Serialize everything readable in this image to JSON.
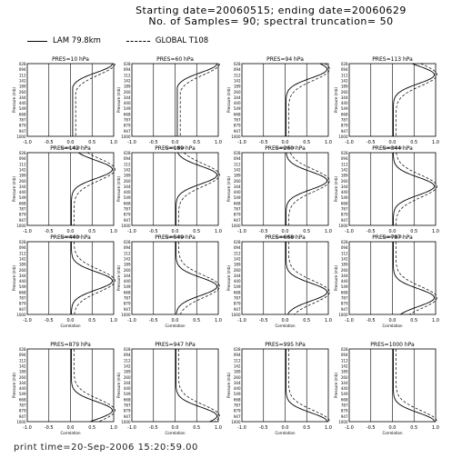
{
  "header": {
    "line1": "Starting date=20060515;  ending date=20060629",
    "line2": "No. of Samples= 90;   spectral truncation= 50"
  },
  "legend": {
    "series1": "LAM 79.8km",
    "series2": "GLOBAL T108"
  },
  "footer": {
    "print_time": "print time=20-Sep-2006 15:20:59.00"
  },
  "chart_data": {
    "type": "line",
    "xlabel": "Correlation",
    "ylabel": "Pressure (mb)",
    "xlim": [
      -1.0,
      1.0
    ],
    "x_ticks": [
      "-1.0",
      "-0.5",
      "0.0",
      "0.5",
      "1.0"
    ],
    "y_ticks": [
      "028",
      "094",
      "112",
      "142",
      "189",
      "260",
      "344",
      "440",
      "549",
      "668",
      "787",
      "879",
      "947",
      "1000"
    ],
    "series_names": [
      "LAM 79.8km",
      "GLOBAL T108"
    ],
    "panels": [
      {
        "title": "PRES=10 hPa",
        "level": 10
      },
      {
        "title": "PRES=60 hPa",
        "level": 60
      },
      {
        "title": "PRES=94 hPa",
        "level": 94
      },
      {
        "title": "PRES=113 hPa",
        "level": 113
      },
      {
        "title": "PRES=142 hPa",
        "level": 142
      },
      {
        "title": "PRES=189 hPa",
        "level": 189
      },
      {
        "title": "PRES=260 hPa",
        "level": 260
      },
      {
        "title": "PRES=344 hPa",
        "level": 344
      },
      {
        "title": "PRES=440 hPa",
        "level": 440
      },
      {
        "title": "PRES=549 hPa",
        "level": 549
      },
      {
        "title": "PRES=668 hPa",
        "level": 668
      },
      {
        "title": "PRES=787 hPa",
        "level": 787
      },
      {
        "title": "PRES=879 hPa",
        "level": 879
      },
      {
        "title": "PRES=947 hPa",
        "level": 947
      },
      {
        "title": "PRES=995 hPa",
        "level": 995
      },
      {
        "title": "PRES=1000 hPa",
        "level": 1000
      }
    ]
  }
}
